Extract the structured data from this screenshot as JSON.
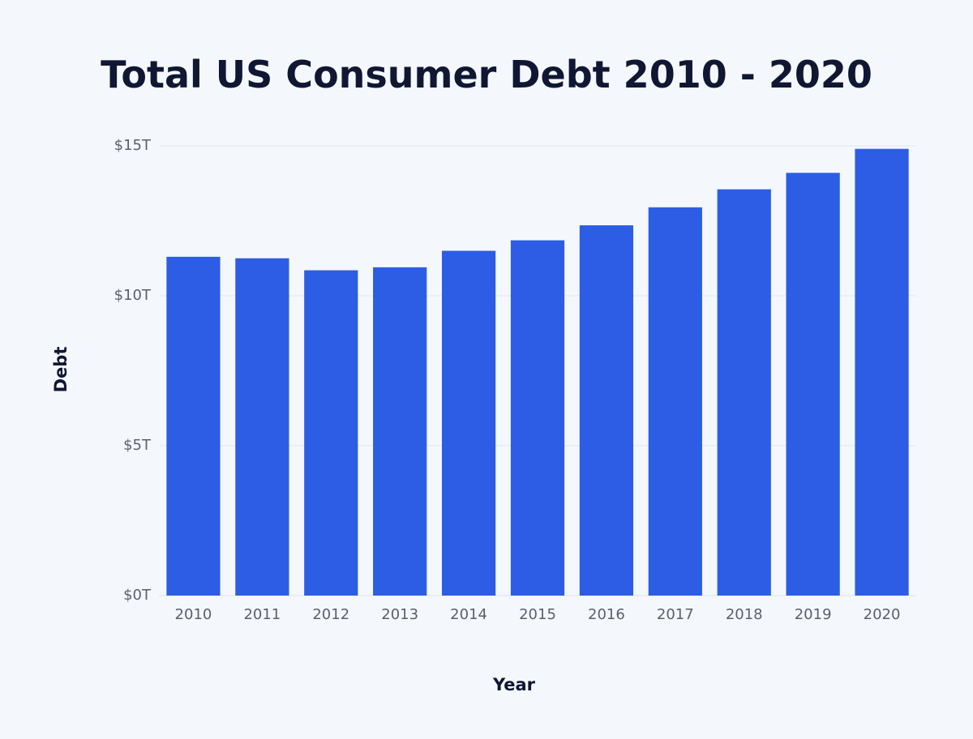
{
  "chart_data": {
    "type": "bar",
    "title": "Total US Consumer Debt 2010 - 2020",
    "xlabel": "Year",
    "ylabel": "Debt",
    "categories": [
      "2010",
      "2011",
      "2012",
      "2013",
      "2014",
      "2015",
      "2016",
      "2017",
      "2018",
      "2019",
      "2020"
    ],
    "values": [
      11.3,
      11.25,
      10.85,
      10.95,
      11.5,
      11.85,
      12.35,
      12.95,
      13.55,
      14.1,
      14.9
    ],
    "value_unit": "trillion USD",
    "ylim": [
      0,
      15
    ],
    "yticks": [
      0,
      5,
      10,
      15
    ],
    "ytick_labels": [
      "$0T",
      "$5T",
      "$10T",
      "$15T"
    ],
    "grid": true,
    "legend": "none",
    "bar_color": "#2d5de4",
    "background_color": "#f4f8fd"
  }
}
